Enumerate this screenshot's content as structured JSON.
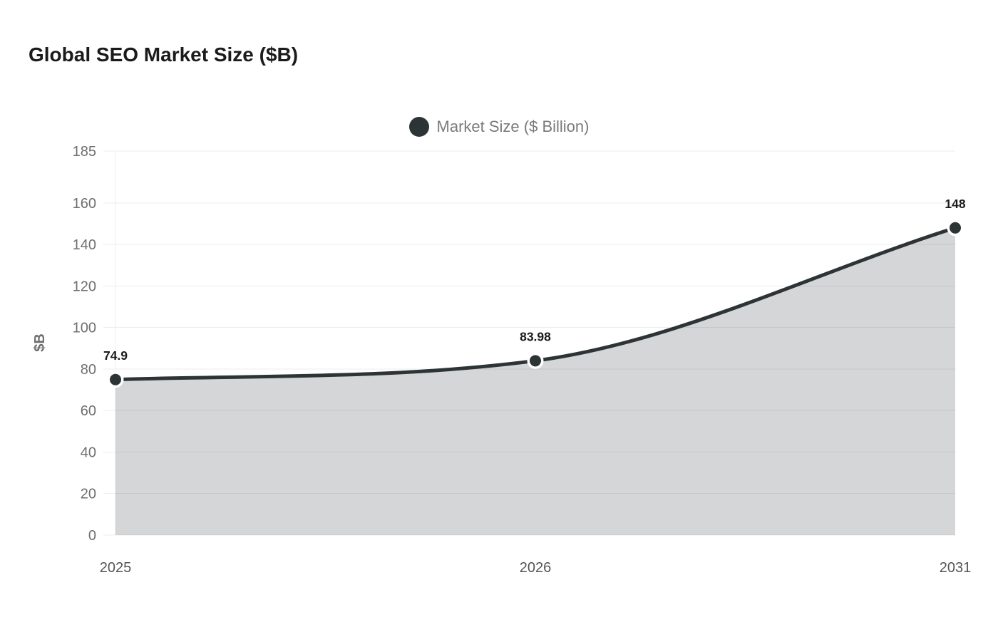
{
  "header": {
    "title": "Global SEO Market Size ($B)"
  },
  "legend": {
    "label": "Market Size ($ Billion)"
  },
  "chart_data": {
    "type": "area",
    "title": "Global SEO Market Size ($B)",
    "categories": [
      "2025",
      "2026",
      "2031"
    ],
    "series": [
      {
        "name": "Market Size ($ Billion)",
        "values": [
          74.9,
          83.98,
          148
        ]
      }
    ],
    "point_labels": [
      "74.9",
      "83.98",
      "148"
    ],
    "xlabel": "",
    "ylabel": "$B",
    "ylim": [
      0,
      185
    ],
    "yticks": [
      0,
      20,
      40,
      60,
      80,
      100,
      120,
      140,
      160,
      185
    ],
    "grid": "horizontal",
    "legend_position": "top-center",
    "interpolation": "monotone",
    "colors": {
      "line": "#2d3436",
      "area_fill": "#2d3436",
      "area_opacity": 0.2,
      "grid": "#ededed",
      "ytick_text": "#6f6f6f",
      "xtick_text": "#555555",
      "point_label_text": "#1b1b1b",
      "legend_text": "#7a7a7a",
      "title_text": "#1b1b1b",
      "dot_fill": "#2d3436",
      "dot_stroke": "#ffffff",
      "background": "#ffffff"
    }
  }
}
